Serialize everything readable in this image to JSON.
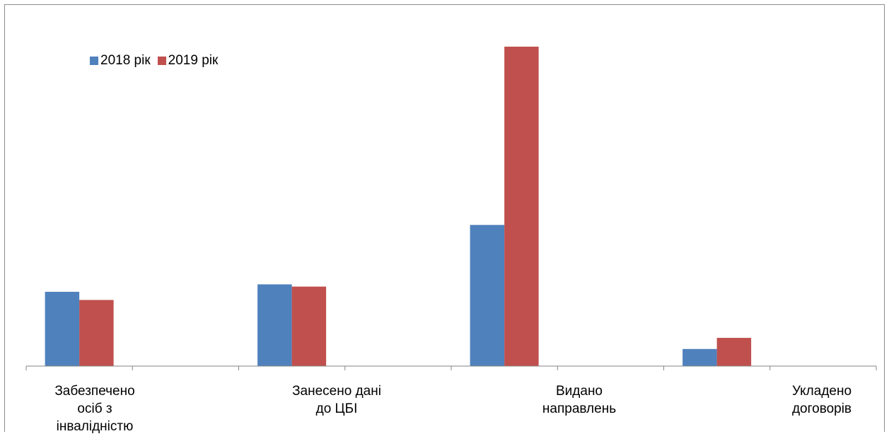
{
  "chart_data": {
    "type": "bar",
    "categories": [
      [
        "Забезпечено",
        "осіб з",
        "інвалідністю"
      ],
      [
        "Занесено дані",
        "до ЦБІ"
      ],
      [
        "Видано",
        "направлень"
      ],
      [
        "Укладено",
        "договорів"
      ]
    ],
    "series": [
      {
        "name": "2018 рік",
        "color": "#4F81BD",
        "values": [
          100,
          110,
          190,
          23
        ]
      },
      {
        "name": "2019 рік",
        "color": "#C0504D",
        "values": [
          89,
          107,
          430,
          38
        ]
      }
    ],
    "title": "",
    "xlabel": "",
    "ylabel": "",
    "ylim": [
      0,
      450
    ],
    "grid": false,
    "legend_position": "top-left"
  }
}
